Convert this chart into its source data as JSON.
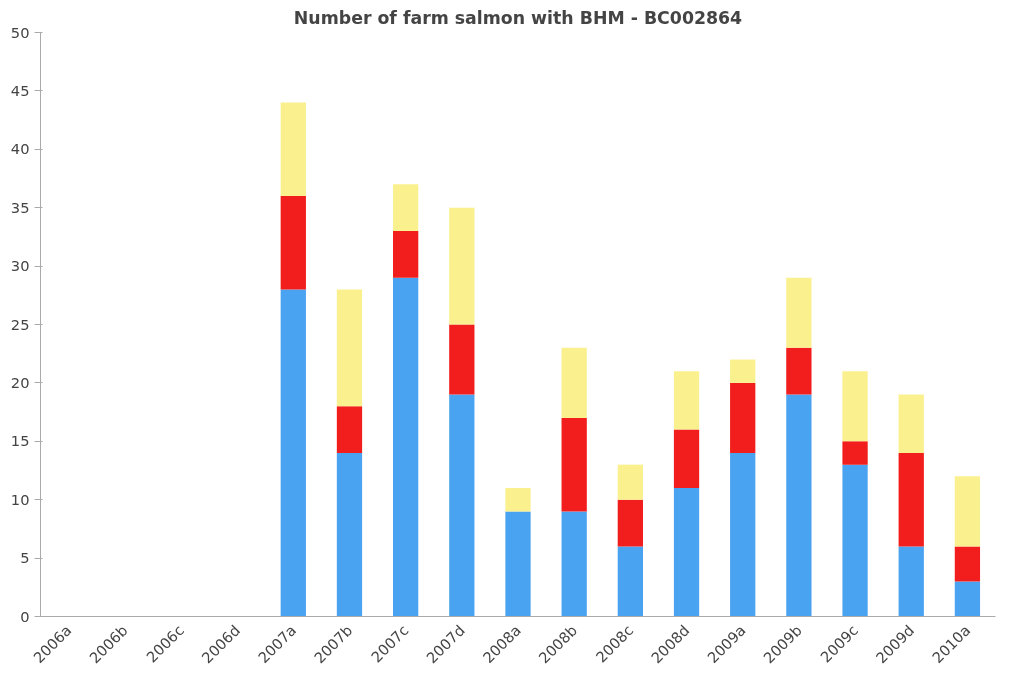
{
  "chart_data": {
    "type": "bar",
    "title": "Number of farm salmon with BHM - BC002864",
    "stacked": true,
    "categories": [
      "2006a",
      "2006b",
      "2006c",
      "2006d",
      "2007a",
      "2007b",
      "2007c",
      "2007d",
      "2008a",
      "2008b",
      "2008c",
      "2008d",
      "2009a",
      "2009b",
      "2009c",
      "2009d",
      "2010a"
    ],
    "series": [
      {
        "color": "#4aa3f0",
        "values": [
          null,
          null,
          null,
          null,
          28,
          14,
          29,
          19,
          9,
          9,
          6,
          11,
          14,
          19,
          13,
          6,
          3
        ]
      },
      {
        "color": "#f21d1d",
        "values": [
          null,
          null,
          null,
          null,
          8,
          4,
          4,
          6,
          0,
          8,
          4,
          5,
          6,
          4,
          2,
          8,
          3
        ]
      },
      {
        "color": "#faf08e",
        "values": [
          null,
          null,
          null,
          null,
          8,
          10,
          4,
          10,
          2,
          6,
          3,
          5,
          2,
          6,
          6,
          5,
          6
        ]
      }
    ],
    "ylim": [
      0,
      50
    ],
    "yticks": [
      0,
      5,
      10,
      15,
      20,
      25,
      30,
      35,
      40,
      45,
      50
    ],
    "grid": false
  }
}
